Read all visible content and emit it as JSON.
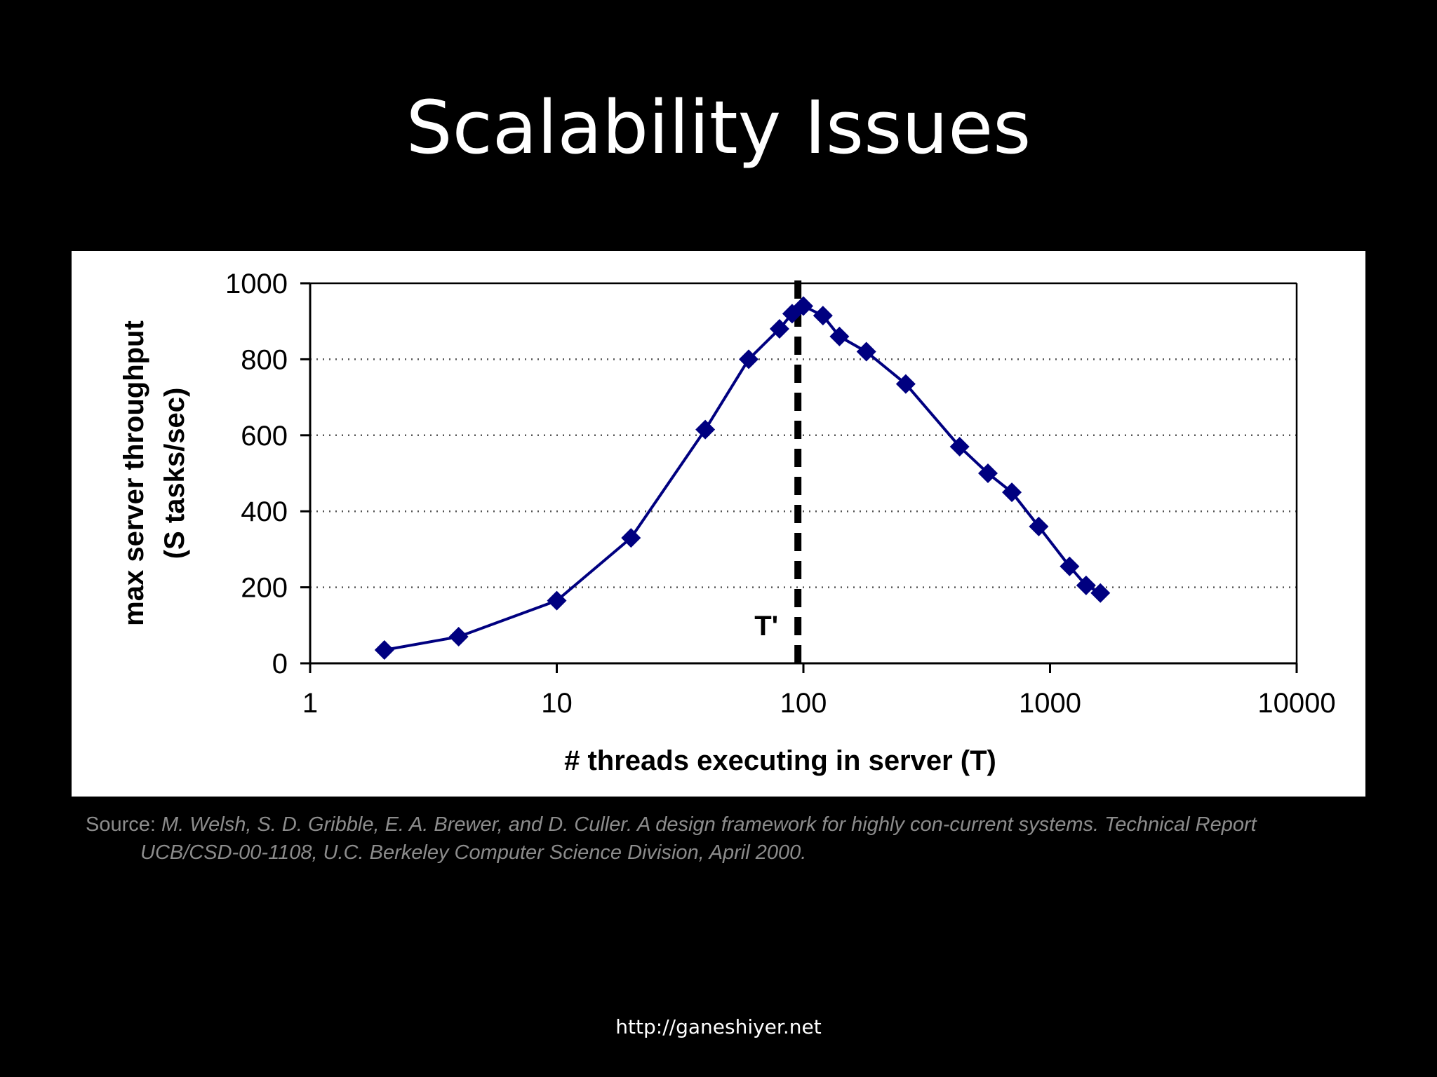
{
  "slide": {
    "title": "Scalability Issues",
    "source_label": "Source:",
    "source_line1": "M. Welsh, S. D. Gribble, E. A. Brewer, and D. Culler. A design framework for highly con-current systems. Technical Report",
    "source_line2": "UCB/CSD-00-1108, U.C. Berkeley Computer Science Division, April 2000.",
    "footer_url": "http://ganeshiyer.net"
  },
  "colors": {
    "background": "#000000",
    "panel": "#ffffff",
    "series": "#000080",
    "marker_line": "#000000"
  },
  "chart_data": {
    "type": "line",
    "title": "",
    "xlabel": "# threads executing in server (T)",
    "ylabel_line1": "max server throughput",
    "ylabel_line2": "(S tasks/sec)",
    "x_scale": "log",
    "xlim": [
      1,
      10000
    ],
    "ylim": [
      0,
      1000
    ],
    "x_ticks": [
      1,
      10,
      100,
      1000,
      10000
    ],
    "x_tick_labels": [
      "1",
      "10",
      "100",
      "1000",
      "10000"
    ],
    "y_ticks": [
      0,
      200,
      400,
      600,
      800,
      1000
    ],
    "y_tick_labels": [
      "0",
      "200",
      "400",
      "600",
      "800",
      "1000"
    ],
    "grid": "horizontal dotted",
    "legend": "none",
    "annotation": {
      "label": "T'",
      "x": 95
    },
    "series": [
      {
        "marker": "diamond",
        "x": [
          2,
          4,
          10,
          20,
          40,
          60,
          80,
          90,
          100,
          120,
          140,
          180,
          260,
          430,
          560,
          700,
          900,
          1200,
          1400,
          1600
        ],
        "y": [
          35,
          70,
          165,
          330,
          615,
          800,
          880,
          920,
          940,
          915,
          860,
          820,
          735,
          570,
          500,
          450,
          360,
          255,
          205,
          185
        ]
      }
    ]
  }
}
